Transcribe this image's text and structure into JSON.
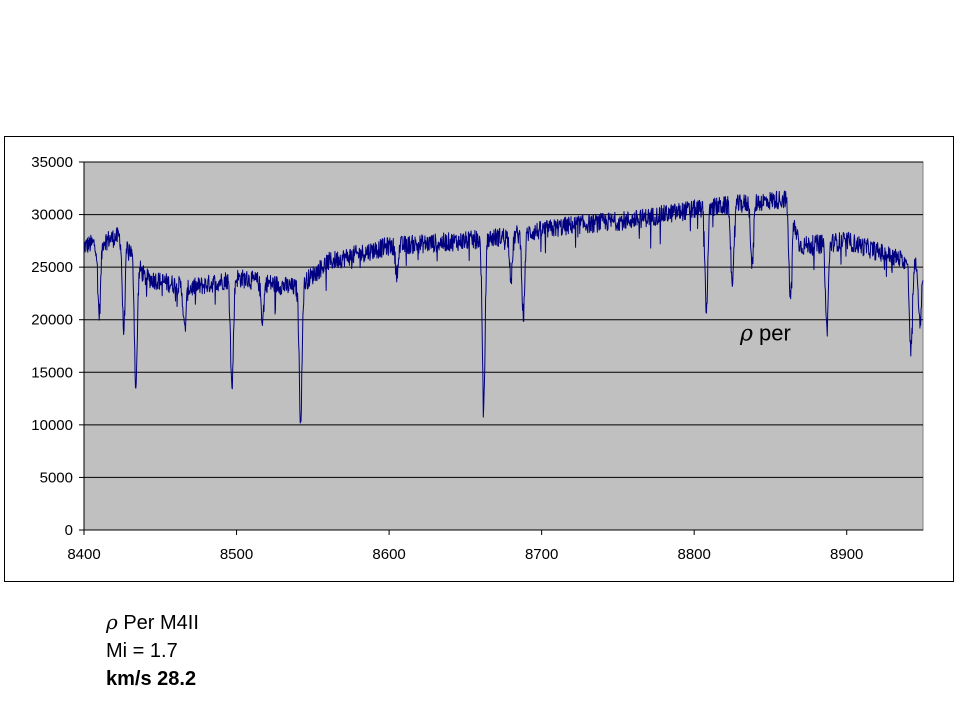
{
  "chart_data": {
    "type": "line",
    "title": "",
    "xlabel": "",
    "ylabel": "",
    "xlim": [
      8400,
      8950
    ],
    "ylim": [
      0,
      35000
    ],
    "x_ticks": [
      8400,
      8500,
      8600,
      8700,
      8800,
      8900
    ],
    "y_ticks": [
      0,
      5000,
      10000,
      15000,
      20000,
      25000,
      30000,
      35000
    ],
    "x_tick_labels": [
      "8400",
      "8500",
      "8600",
      "8700",
      "8800",
      "8900"
    ],
    "y_tick_labels": [
      "0",
      "5000",
      "10000",
      "15000",
      "20000",
      "25000",
      "30000",
      "35000"
    ],
    "grid": "horizontal",
    "plot_background": "#c0c0c0",
    "line_color": "#000080",
    "annotation": {
      "symbol": "ρ",
      "text": " per"
    },
    "series": [
      {
        "continuum": [
          [
            8400,
            27000
          ],
          [
            8425,
            28000
          ],
          [
            8440,
            24000
          ],
          [
            8470,
            23000
          ],
          [
            8500,
            24000
          ],
          [
            8540,
            23000
          ],
          [
            8560,
            25500
          ],
          [
            8600,
            27000
          ],
          [
            8650,
            27500
          ],
          [
            8680,
            28000
          ],
          [
            8720,
            29000
          ],
          [
            8760,
            29500
          ],
          [
            8800,
            30500
          ],
          [
            8830,
            31000
          ],
          [
            8860,
            31500
          ],
          [
            8870,
            27000
          ],
          [
            8900,
            27500
          ],
          [
            8950,
            25000
          ]
        ],
        "lines": [
          [
            8410,
            20500
          ],
          [
            8426,
            19000
          ],
          [
            8434,
            13500
          ],
          [
            8466,
            19000
          ],
          [
            8497,
            13500
          ],
          [
            8517,
            20000
          ],
          [
            8542,
            10500
          ],
          [
            8605,
            24500
          ],
          [
            8662,
            11500
          ],
          [
            8680,
            24000
          ],
          [
            8688,
            20500
          ],
          [
            8808,
            21000
          ],
          [
            8825,
            22500
          ],
          [
            8838,
            25000
          ],
          [
            8863,
            22000
          ],
          [
            8887,
            19000
          ],
          [
            8942,
            17000
          ],
          [
            8948,
            19500
          ]
        ],
        "line_width_nm": 1.3,
        "noise_amplitude": 900
      }
    ]
  },
  "caption": {
    "line1_symbol": "ρ",
    "line1_text": " Per M4II",
    "line2_text": "Mi = 1.7",
    "line3_text": "km/s 28.2"
  }
}
